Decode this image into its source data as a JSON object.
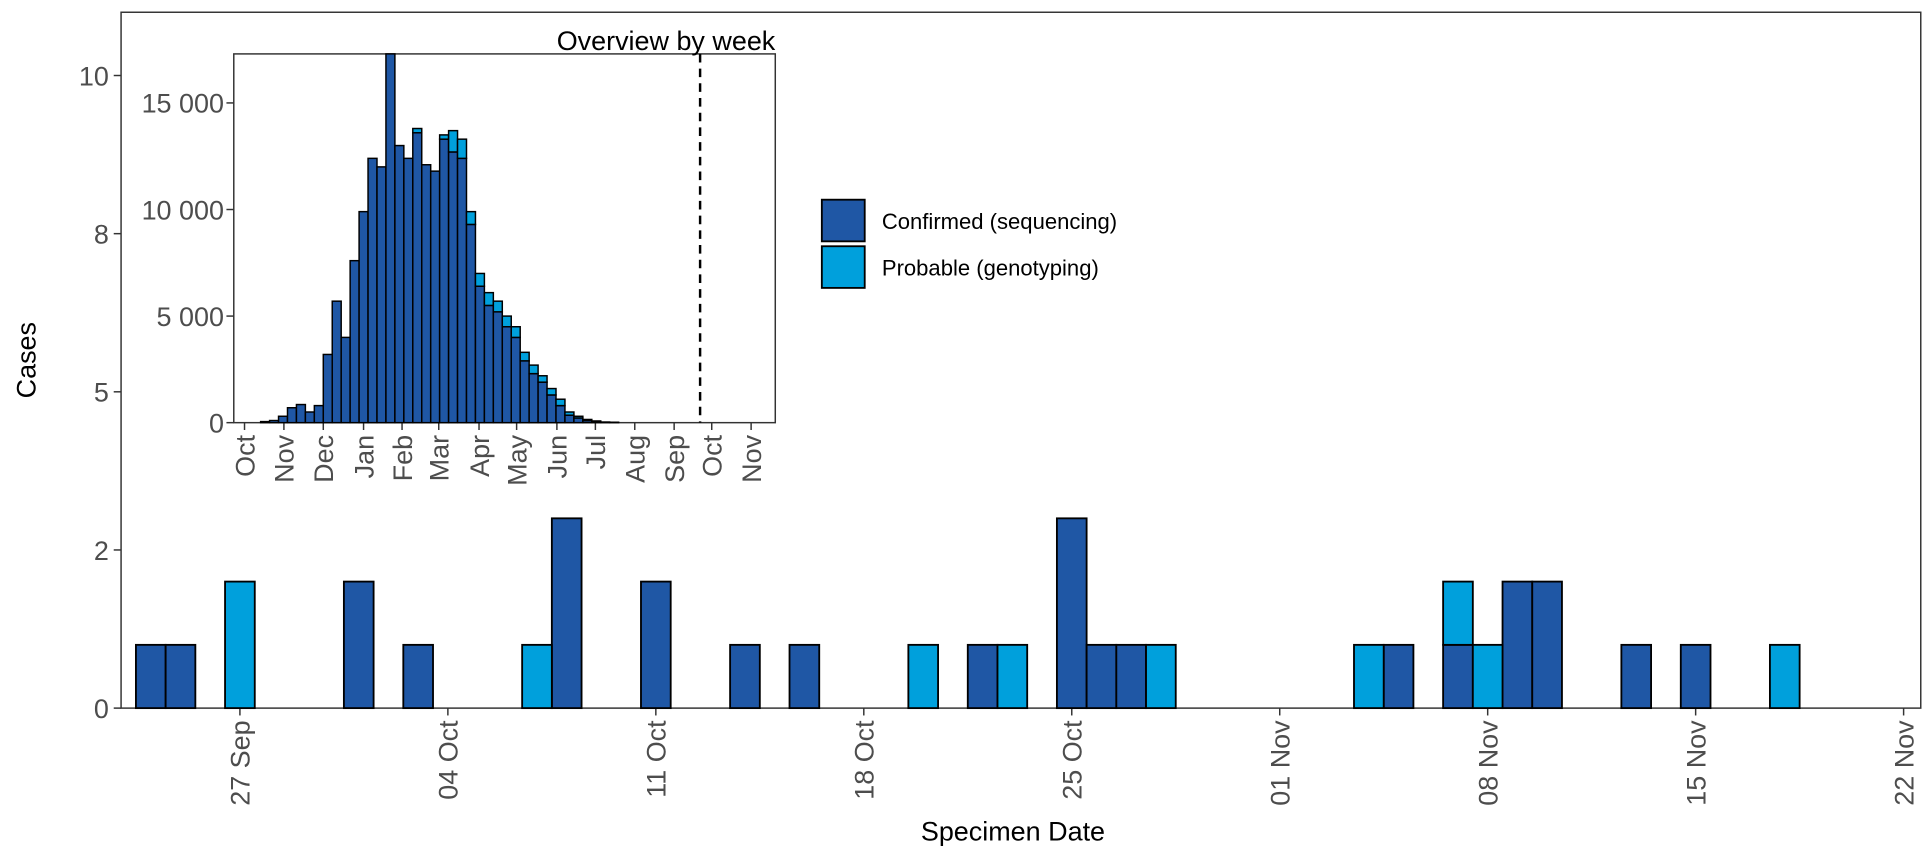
{
  "chart_data": [
    {
      "type": "bar",
      "x_label": "Specimen Date",
      "y_label": "Cases",
      "x": [
        "24 Sep",
        "25 Sep",
        "27 Sep",
        "01 Oct",
        "03 Oct",
        "07 Oct",
        "08 Oct",
        "11 Oct",
        "14 Oct",
        "16 Oct",
        "20 Oct",
        "22 Oct",
        "23 Oct",
        "25 Oct",
        "26 Oct",
        "27 Oct",
        "28 Oct",
        "04 Nov",
        "05 Nov",
        "07 Nov",
        "08 Nov",
        "09 Nov",
        "10 Nov",
        "13 Nov",
        "15 Nov",
        "18 Nov"
      ],
      "series": [
        {
          "name": "Confirmed (sequencing)",
          "color": "#1f57a5",
          "values": [
            1,
            1,
            null,
            2,
            1,
            null,
            3,
            2,
            1,
            1,
            null,
            1,
            null,
            3,
            1,
            1,
            null,
            null,
            1,
            1,
            null,
            2,
            2,
            1,
            1,
            null
          ]
        },
        {
          "name": "Probable (genotyping)",
          "color": "#00a0dc",
          "values": [
            null,
            null,
            2,
            null,
            null,
            1,
            null,
            null,
            null,
            null,
            1,
            null,
            1,
            null,
            null,
            null,
            1,
            1,
            null,
            1,
            1,
            null,
            null,
            null,
            null,
            1
          ]
        }
      ],
      "stacked": true,
      "xlim": [
        "23 Sep",
        "22 Nov"
      ],
      "xticks": [
        "27 Sep",
        "04 Oct",
        "11 Oct",
        "18 Oct",
        "25 Oct",
        "01 Nov",
        "08 Nov",
        "15 Nov",
        "22 Nov"
      ],
      "ylim": [
        0,
        11
      ],
      "yticks": [
        0,
        {
          "value": 2.5,
          "label": "2"
        },
        5,
        {
          "value": 7.5,
          "label": "8"
        },
        10
      ]
    },
    {
      "type": "histogram",
      "title": "Overview by week",
      "bins": [
        3,
        4,
        5,
        6,
        7,
        8,
        9,
        10,
        11,
        12,
        13,
        14,
        15,
        16,
        17,
        18,
        19,
        20,
        21,
        22,
        23,
        24,
        25,
        26,
        27,
        28,
        29,
        30,
        31,
        32,
        33,
        34,
        35,
        36,
        37,
        38,
        39,
        40,
        41,
        42,
        43
      ],
      "series": [
        {
          "color": "#1f57a5",
          "values": [
            50,
            100,
            300,
            700,
            850,
            500,
            800,
            3200,
            5700,
            4000,
            7600,
            9900,
            12400,
            12000,
            17300,
            13000,
            12400,
            13600,
            12100,
            11800,
            13300,
            12700,
            12400,
            9300,
            6400,
            5500,
            5200,
            4500,
            4000,
            2900,
            2300,
            1900,
            1300,
            800,
            350,
            220,
            100,
            50,
            30,
            20
          ]
        },
        {
          "color": "#00a0dc",
          "values": [
            null,
            null,
            null,
            null,
            null,
            null,
            null,
            null,
            null,
            null,
            null,
            null,
            null,
            null,
            null,
            null,
            null,
            200,
            null,
            null,
            200,
            1000,
            900,
            600,
            600,
            600,
            500,
            500,
            500,
            400,
            400,
            300,
            300,
            300,
            150,
            80,
            50,
            30,
            null,
            null
          ]
        }
      ],
      "stacked": true,
      "vline": 52.1,
      "xlim": [
        0,
        60.5
      ],
      "xticks": [
        {
          "value": 1.2,
          "label": "Oct"
        },
        {
          "value": 5.6,
          "label": "Nov"
        },
        {
          "value": 10,
          "label": "Dec"
        },
        {
          "value": 14.5,
          "label": "Jan"
        },
        {
          "value": 18.8,
          "label": "Feb"
        },
        {
          "value": 22.9,
          "label": "Mar"
        },
        {
          "value": 27.4,
          "label": "Apr"
        },
        {
          "value": 31.6,
          "label": "May"
        },
        {
          "value": 36.1,
          "label": "Jun"
        },
        {
          "value": 40.4,
          "label": "Jul"
        },
        {
          "value": 44.8,
          "label": "Aug"
        },
        {
          "value": 49.2,
          "label": "Sep"
        },
        {
          "value": 53.4,
          "label": "Oct"
        },
        {
          "value": 57.8,
          "label": "Nov"
        }
      ],
      "ylim": [
        0,
        17300
      ],
      "yticks": [
        0,
        {
          "value": 5000,
          "label": "5 000"
        },
        {
          "value": 10000,
          "label": "10 000"
        },
        {
          "value": 15000,
          "label": "15 000"
        }
      ]
    }
  ]
}
